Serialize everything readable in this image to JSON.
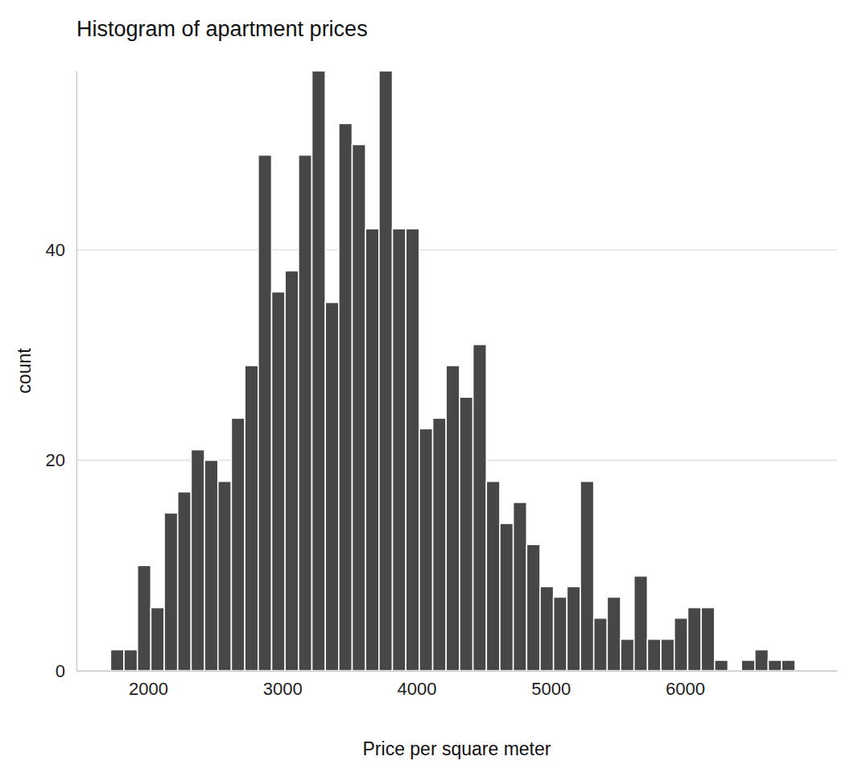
{
  "chart_data": {
    "type": "histogram",
    "title": "Histogram of apartment prices",
    "x_label": "Price per square meter",
    "y_label": "count",
    "bins": [
      1720,
      1820,
      1920,
      2020,
      2120,
      2220,
      2320,
      2420,
      2520,
      2620,
      2720,
      2820,
      2920,
      3020,
      3120,
      3220,
      3320,
      3420,
      3520,
      3620,
      3720,
      3820,
      3920,
      4020,
      4120,
      4220,
      4320,
      4420,
      4520,
      4620,
      4720,
      4820,
      4920,
      5020,
      5120,
      5220,
      5320,
      5420,
      5520,
      5620,
      5720,
      5820,
      5920,
      6020,
      6120,
      6220,
      6320,
      6420,
      6520,
      6620,
      6720,
      6820
    ],
    "values": [
      2,
      2,
      10,
      6,
      15,
      17,
      21,
      20,
      18,
      24,
      29,
      49,
      36,
      38,
      49,
      57,
      35,
      52,
      50,
      42,
      57,
      42,
      42,
      23,
      24,
      29,
      26,
      31,
      18,
      14,
      16,
      12,
      8,
      7,
      8,
      18,
      5,
      7,
      3,
      9,
      3,
      3,
      5,
      6,
      6,
      1,
      0,
      1,
      2,
      1,
      1
    ],
    "color": "#474747",
    "xlim": [
      1466,
      7133
    ],
    "ylim": [
      0,
      57
    ],
    "xticks": [
      2000,
      3000,
      4000,
      5000,
      6000
    ],
    "yticks": [
      0,
      20,
      40
    ],
    "grid": true
  }
}
